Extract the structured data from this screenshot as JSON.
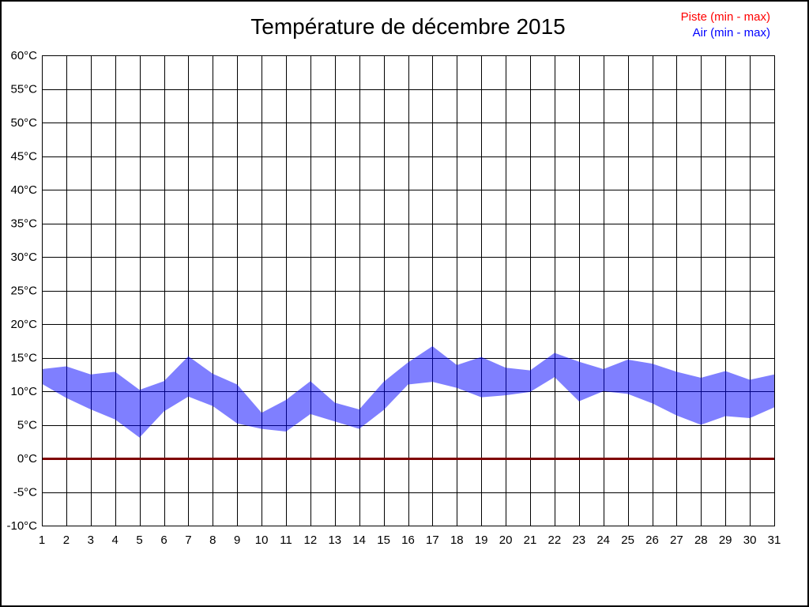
{
  "title": "Température de décembre 2015",
  "legend": [
    {
      "label": "Piste (min - max)",
      "color": "#ff0000"
    },
    {
      "label": "Air (min - max)",
      "color": "#0000ff"
    }
  ],
  "colors": {
    "grid": "#000000",
    "air_band_fill": "#0000ff",
    "air_band_rendered": "#8080ff",
    "piste_line_rendered": "#800000",
    "background": "#ffffff",
    "border": "#000000"
  },
  "chart_data": {
    "type": "area",
    "subtype": "min-max band",
    "title": "Température de décembre 2015",
    "xlabel": "",
    "ylabel": "",
    "grid": true,
    "legend_position": "top-right",
    "xlim": [
      1,
      31
    ],
    "ylim": [
      -10,
      60
    ],
    "x": [
      1,
      2,
      3,
      4,
      5,
      6,
      7,
      8,
      9,
      10,
      11,
      12,
      13,
      14,
      15,
      16,
      17,
      18,
      19,
      20,
      21,
      22,
      23,
      24,
      25,
      26,
      27,
      28,
      29,
      30,
      31
    ],
    "x_tick_labels": [
      "1",
      "2",
      "3",
      "4",
      "5",
      "6",
      "7",
      "8",
      "9",
      "10",
      "11",
      "12",
      "13",
      "14",
      "15",
      "16",
      "17",
      "18",
      "19",
      "20",
      "21",
      "22",
      "23",
      "24",
      "25",
      "26",
      "27",
      "28",
      "29",
      "30",
      "31"
    ],
    "y_tick_values": [
      -10,
      -5,
      0,
      5,
      10,
      15,
      20,
      25,
      30,
      35,
      40,
      45,
      50,
      55,
      60
    ],
    "y_tick_labels": [
      "-10°C",
      "-5°C",
      "0°C",
      "5°C",
      "10°C",
      "15°C",
      "20°C",
      "25°C",
      "30°C",
      "35°C",
      "40°C",
      "45°C",
      "50°C",
      "55°C",
      "60°C"
    ],
    "series": [
      {
        "name": "Piste (min - max)",
        "color": "#ff0000",
        "min": [
          0,
          0,
          0,
          0,
          0,
          0,
          0,
          0,
          0,
          0,
          0,
          0,
          0,
          0,
          0,
          0,
          0,
          0,
          0,
          0,
          0,
          0,
          0,
          0,
          0,
          0,
          0,
          0,
          0,
          0,
          0
        ],
        "max": [
          0,
          0,
          0,
          0,
          0,
          0,
          0,
          0,
          0,
          0,
          0,
          0,
          0,
          0,
          0,
          0,
          0,
          0,
          0,
          0,
          0,
          0,
          0,
          0,
          0,
          0,
          0,
          0,
          0,
          0,
          0
        ]
      },
      {
        "name": "Air (min - max)",
        "color": "#0000ff",
        "min": [
          11.1,
          9.0,
          7.3,
          5.8,
          3.1,
          7.0,
          9.2,
          7.8,
          5.2,
          4.4,
          4.0,
          6.6,
          5.5,
          4.4,
          7.2,
          11.0,
          11.4,
          10.5,
          9.1,
          9.4,
          9.9,
          12.1,
          8.5,
          10.0,
          9.6,
          8.2,
          6.4,
          5.0,
          6.3,
          6.0,
          7.6
        ],
        "max": [
          13.3,
          13.7,
          12.5,
          12.9,
          10.2,
          11.5,
          15.2,
          12.6,
          11.0,
          6.8,
          8.7,
          11.5,
          8.3,
          7.3,
          11.4,
          14.3,
          16.7,
          13.9,
          15.1,
          13.5,
          13.1,
          15.7,
          14.4,
          13.3,
          14.7,
          14.1,
          12.9,
          12.0,
          13.0,
          11.7,
          12.5
        ]
      }
    ]
  }
}
